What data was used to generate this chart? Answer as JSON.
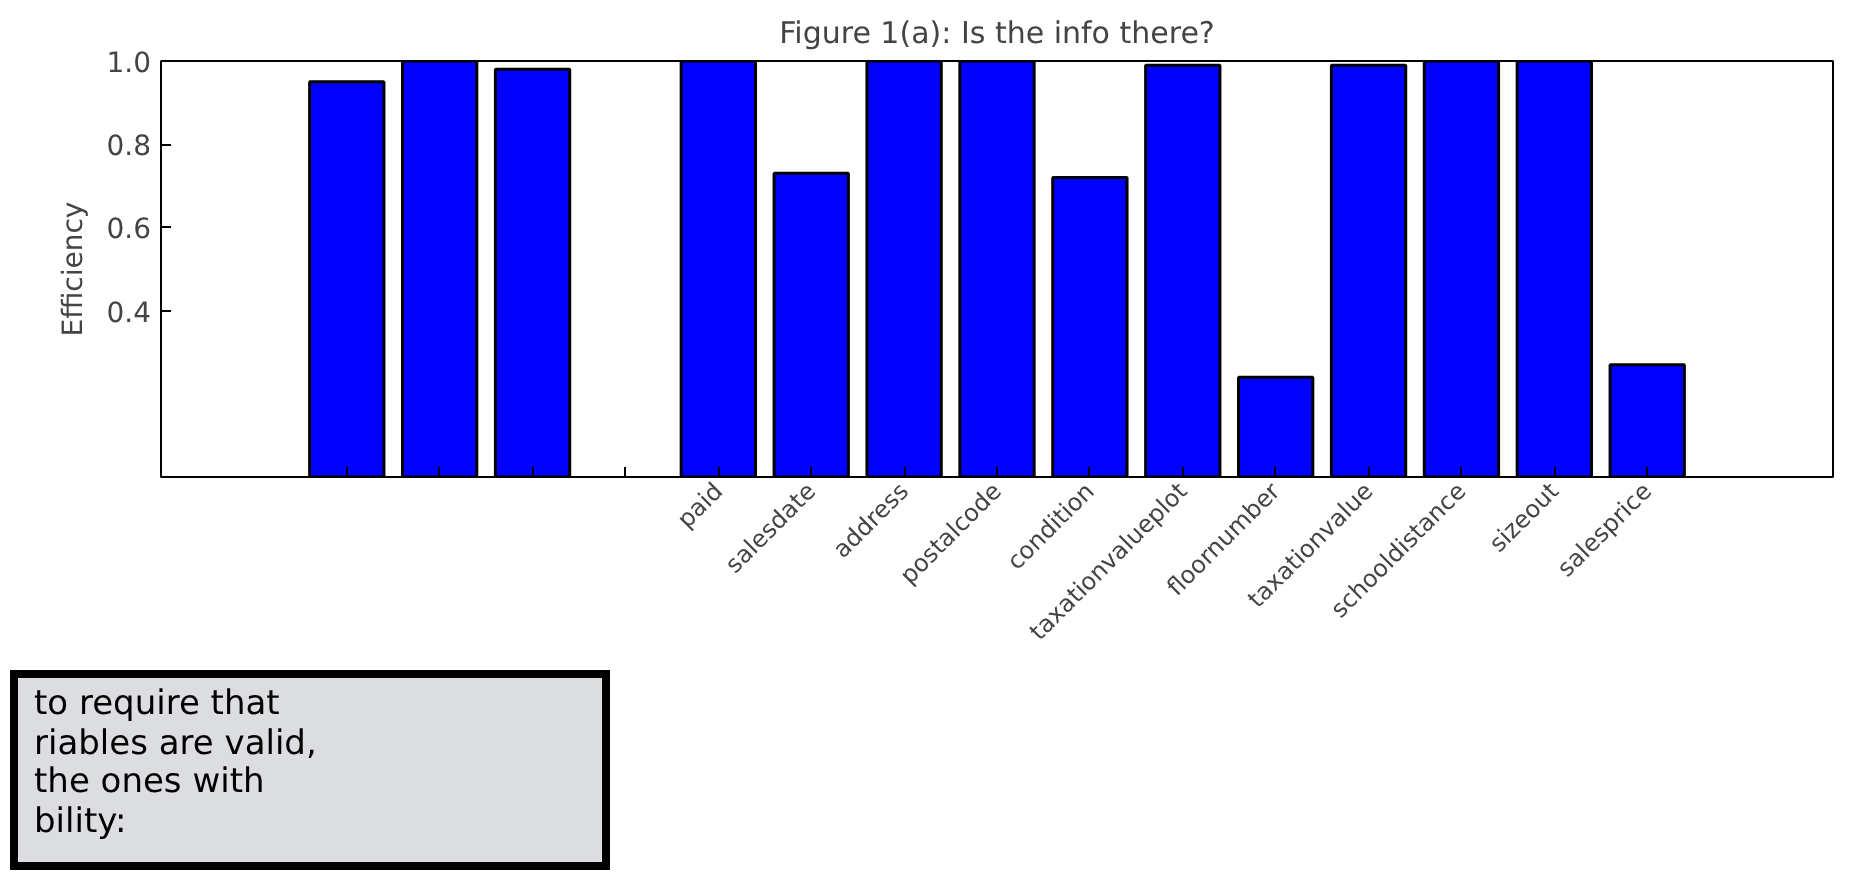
{
  "chart_data": {
    "type": "bar",
    "title": "Figure 1(a): Is the info there?",
    "ylabel": "Efficiency",
    "categories": [
      null,
      null,
      null,
      null,
      "paid",
      "salesdate",
      "address",
      "postalcode",
      "condition",
      "taxationvalueplot",
      "floornumber",
      "taxationvalue",
      "schooldistance",
      "sizeout",
      "salesprice"
    ],
    "values": [
      0.95,
      1.0,
      0.98,
      null,
      1.0,
      0.73,
      1.0,
      1.0,
      0.72,
      0.99,
      0.24,
      0.99,
      1.0,
      1.0,
      0.27
    ],
    "color": "#0000ff",
    "ylim": [
      0,
      1.0
    ],
    "yticks": [
      {
        "value": 0.4,
        "label": "0.4"
      },
      {
        "value": 0.6,
        "label": "0.6"
      },
      {
        "value": 0.8,
        "label": "0.8"
      },
      {
        "value": 1.0,
        "label": "1.0"
      }
    ],
    "grid": false,
    "annotations": [
      "to require that\nriables are valid,\nthe ones with\nbility:"
    ]
  }
}
